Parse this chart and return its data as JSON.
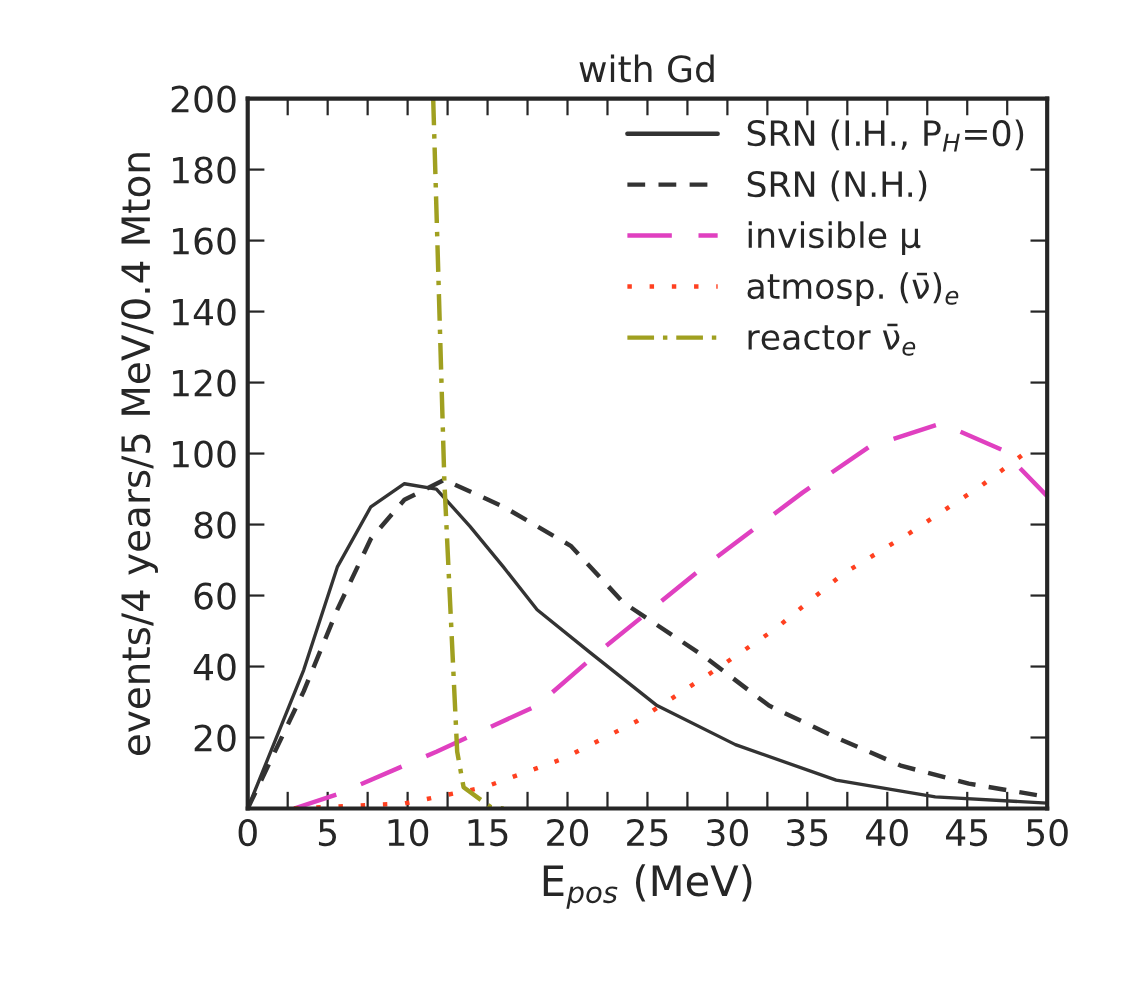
{
  "chart_data": {
    "type": "line",
    "title": "with Gd",
    "xlabel": "E$_{pos}$ (MeV)",
    "ylabel": "events/4 years/5 MeV/0.4 Mton",
    "xlim": [
      0,
      50
    ],
    "ylim": [
      0,
      200
    ],
    "xticks": [
      0,
      {
        "value": 2.5,
        "label": null
      },
      5,
      {
        "value": 7.5,
        "label": null
      },
      10,
      {
        "value": 12.5,
        "label": null
      },
      15,
      {
        "value": 17.5,
        "label": null
      },
      20,
      {
        "value": 22.5,
        "label": null
      },
      25,
      {
        "value": 27.5,
        "label": null
      },
      30,
      {
        "value": 32.5,
        "label": null
      },
      35,
      {
        "value": 37.5,
        "label": null
      },
      40,
      {
        "value": 42.5,
        "label": null
      },
      45,
      {
        "value": 47.5,
        "label": null
      },
      50
    ],
    "yticks": [
      {
        "value": 0,
        "label": null
      },
      20,
      40,
      60,
      80,
      100,
      120,
      140,
      160,
      180,
      200
    ],
    "grid": false,
    "legend": "top right",
    "marker": "none",
    "series": [
      {
        "name": "SRN (I.H., P$_{H}$=0)",
        "color": "#333333",
        "line_style": "solid",
        "x": [
          0,
          3.5,
          5.6,
          7.7,
          9.8,
          11.8,
          13.9,
          16,
          18.1,
          21.4,
          25.6,
          30.5,
          36.8,
          43,
          50
        ],
        "values": [
          0,
          39,
          68,
          85,
          91.5,
          90,
          79.5,
          68,
          56,
          44,
          29,
          18,
          8,
          3.3,
          1.5
        ]
      },
      {
        "name": "SRN (N.H.)",
        "color": "#333333",
        "line_style": "dashed",
        "x": [
          0,
          3.5,
          5.6,
          7.7,
          9.8,
          12.3,
          16,
          20.2,
          23.5,
          28.5,
          32.6,
          36.8,
          40.9,
          45.1,
          50
        ],
        "values": [
          0,
          33,
          56,
          76,
          87,
          92.6,
          85,
          74,
          58,
          43,
          29,
          20,
          12,
          7,
          3.3
        ]
      },
      {
        "name": "invisible μ",
        "color": "#e040c0",
        "line_style": "longdash",
        "x": [
          2.9,
          5.6,
          11.8,
          18.1,
          22.2,
          28.5,
          34.7,
          38.9,
          43.4,
          47.2,
          50
        ],
        "values": [
          0,
          4,
          16,
          29,
          45,
          68,
          89,
          102,
          108.5,
          101,
          88
        ]
      },
      {
        "name": "atmosp. (ν̄)$_{e}$",
        "color": "#ff4020",
        "line_style": "dotted",
        "x": [
          2.9,
          9.8,
          14.8,
          19.7,
          24.3,
          28.9,
          33,
          37.2,
          41.4,
          45.9,
          48.8
        ],
        "values": [
          0,
          1.4,
          6,
          14,
          24.5,
          38,
          50.6,
          66,
          77.6,
          91,
          100.8
        ]
      },
      {
        "name": "reactor ν̄$_{e}$",
        "color": "#a0a020",
        "line_style": "dashdot",
        "x": [
          11.6,
          12.3,
          12.7,
          13.1,
          13.5,
          15.2,
          16
        ],
        "values": [
          200,
          92,
          54,
          16,
          6,
          0.4,
          0
        ]
      }
    ]
  }
}
